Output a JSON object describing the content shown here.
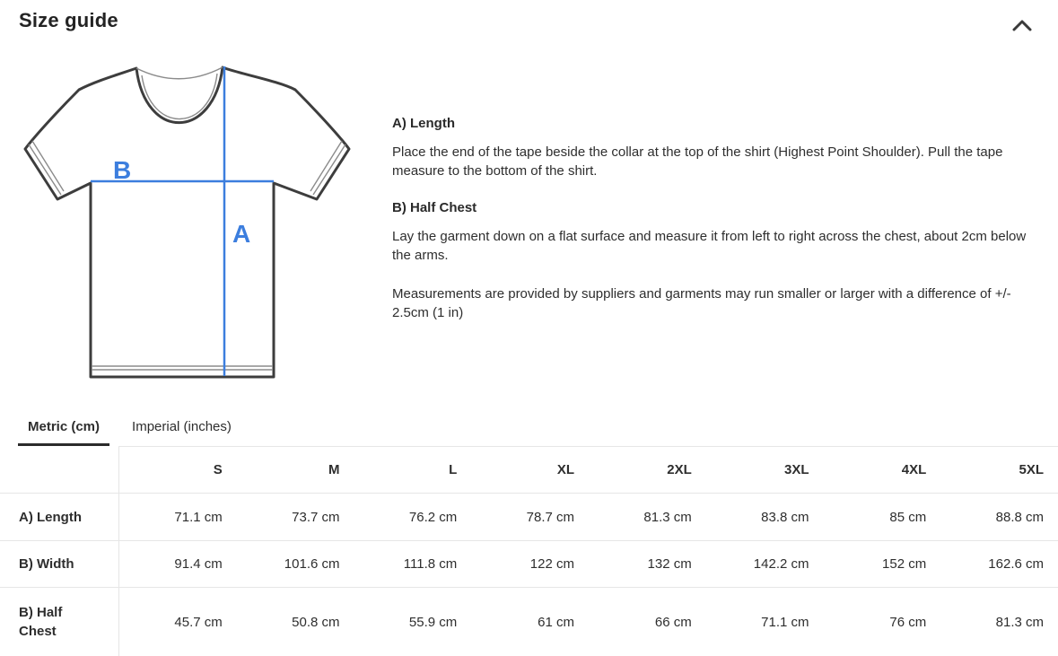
{
  "header": {
    "title": "Size guide",
    "collapse_icon": "chevron-up-icon"
  },
  "colors": {
    "accent_blue": "#3c7ede",
    "outline_dark": "#3d3d3d",
    "border_light": "#e6e6e6"
  },
  "diagram": {
    "label_a": "A",
    "label_b": "B"
  },
  "instructions": [
    {
      "heading": "A) Length",
      "body": "Place the end of the tape beside the collar at the top of the shirt (Highest Point Shoulder). Pull the tape measure to the bottom of the shirt."
    },
    {
      "heading": "B) Half Chest",
      "body": "Lay the garment down on a flat surface and measure it from left to right across the chest, about 2cm below the arms."
    }
  ],
  "note": "Measurements are provided by suppliers and garments may run smaller or larger with a difference of +/- 2.5cm (1 in)",
  "tabs": [
    {
      "label": "Metric (cm)",
      "active": true
    },
    {
      "label": "Imperial (inches)",
      "active": false
    }
  ],
  "size_table": {
    "columns": [
      "S",
      "M",
      "L",
      "XL",
      "2XL",
      "3XL",
      "4XL",
      "5XL"
    ],
    "rows": [
      {
        "label": "A) Length",
        "values": [
          "71.1 cm",
          "73.7 cm",
          "76.2 cm",
          "78.7 cm",
          "81.3 cm",
          "83.8 cm",
          "85 cm",
          "88.8 cm"
        ]
      },
      {
        "label": "B) Width",
        "values": [
          "91.4 cm",
          "101.6 cm",
          "111.8 cm",
          "122 cm",
          "132 cm",
          "142.2 cm",
          "152 cm",
          "162.6 cm"
        ]
      },
      {
        "label": "B) Half Chest",
        "values": [
          "45.7 cm",
          "50.8 cm",
          "55.9 cm",
          "61 cm",
          "66 cm",
          "71.1 cm",
          "76 cm",
          "81.3 cm"
        ]
      }
    ]
  }
}
